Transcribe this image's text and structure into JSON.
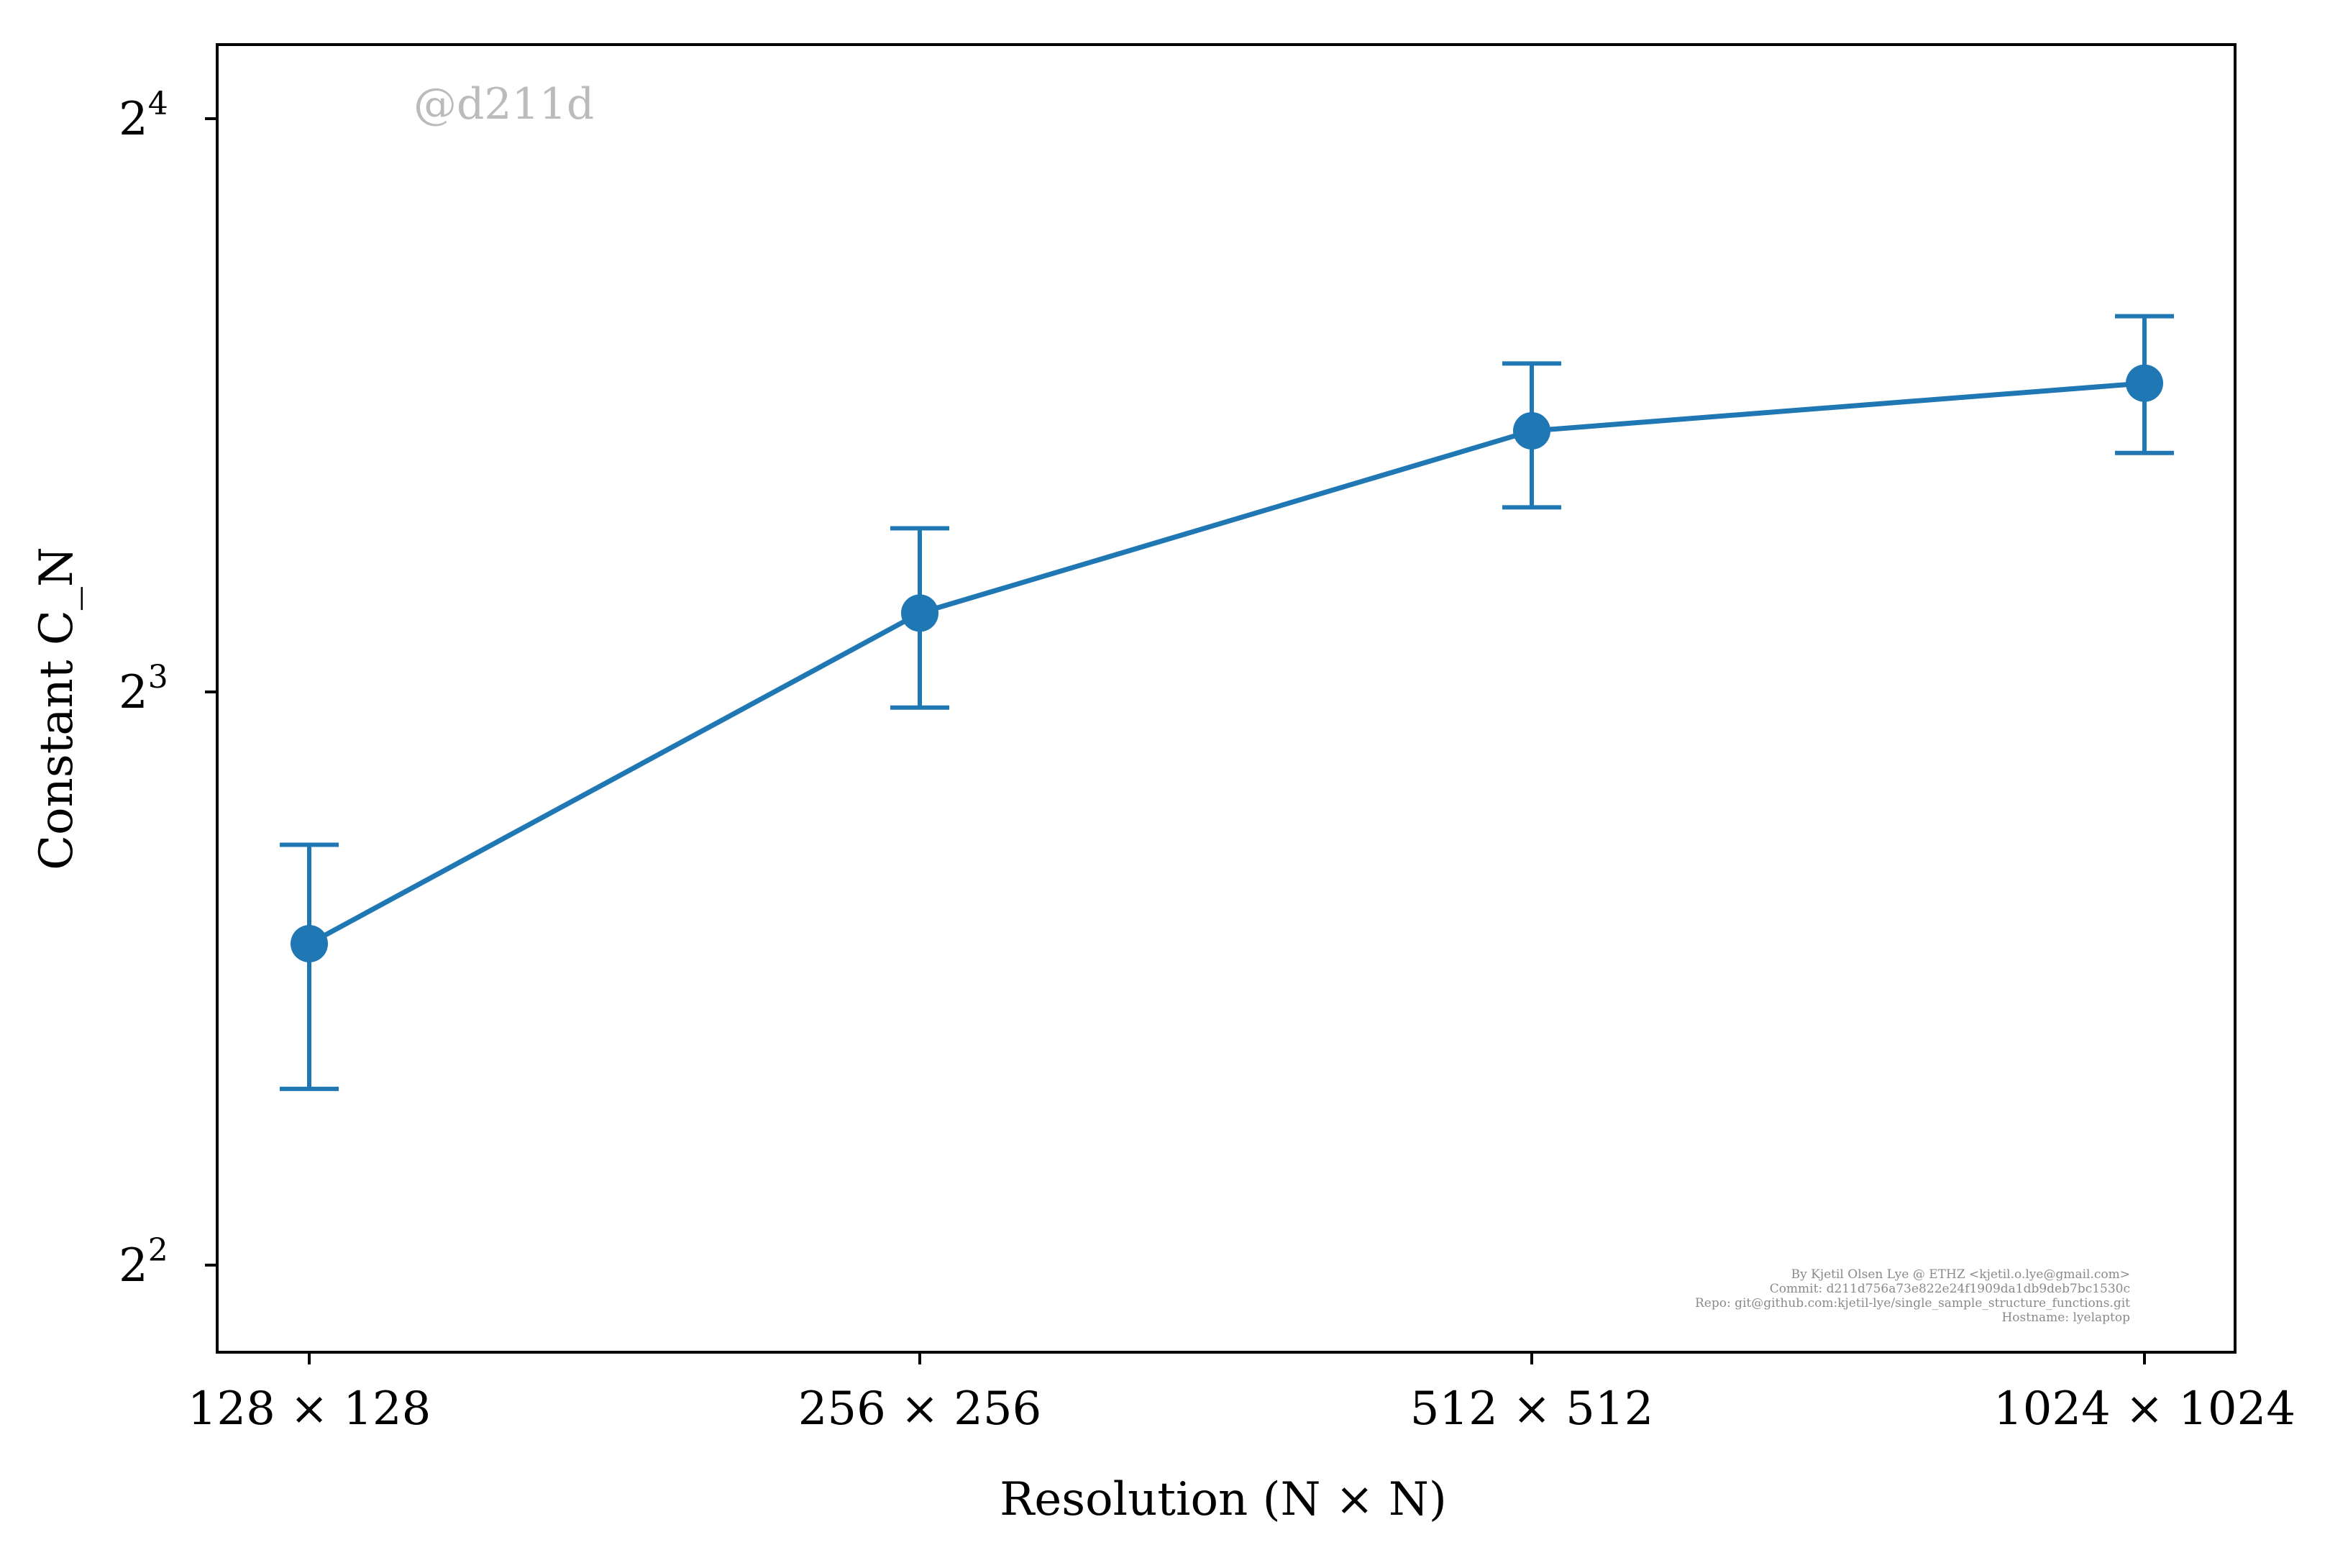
{
  "chart_data": {
    "type": "line",
    "categories": [
      "128 × 128",
      "256 × 256",
      "512 × 512",
      "1024 × 1024"
    ],
    "xlabel": "Resolution (N × N)",
    "ylabel": "Constant C_N",
    "yscale": "log2",
    "ylim": [
      3.6,
      17.5
    ],
    "yticks": [
      {
        "value": 4,
        "base": "2",
        "exp": "2"
      },
      {
        "value": 8,
        "base": "2",
        "exp": "3"
      },
      {
        "value": 16,
        "base": "2",
        "exp": "4"
      }
    ],
    "series": [
      {
        "color": "#1f77b4",
        "values": [
          5.9,
          8.8,
          10.97,
          11.62
        ],
        "err_low": [
          4.95,
          7.85,
          10.0,
          10.68
        ],
        "err_high": [
          6.65,
          9.75,
          11.9,
          12.6
        ]
      }
    ],
    "grid": false,
    "legend": "none"
  },
  "watermark": "@d211d",
  "credits": [
    "By Kjetil Olsen Lye @ ETHZ <kjetil.o.lye@gmail.com>",
    "Commit: d211d756a73e822e24f1909da1db9deb7bc1530c",
    "Repo: git@github.com:kjetil-lye/single_sample_structure_functions.git",
    "Hostname: lyelaptop"
  ]
}
